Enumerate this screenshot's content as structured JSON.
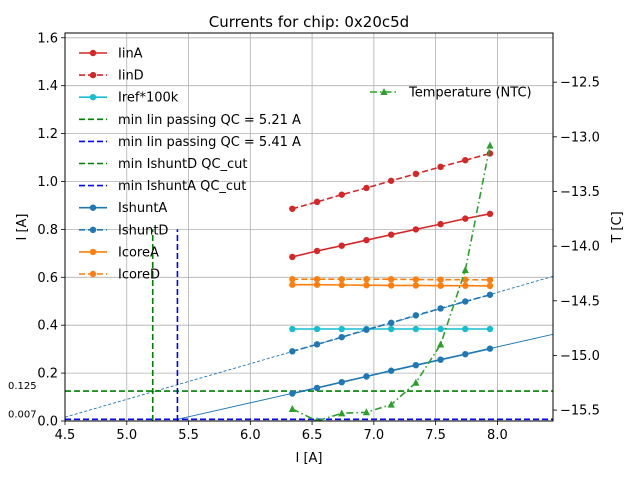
{
  "chart_data": {
    "type": "line",
    "title": "Currents for chip: 0x20c5d",
    "xlabel": "I [A]",
    "ylabel": "I [A]",
    "y2label": "T [C]",
    "xlim": [
      4.5,
      8.45
    ],
    "ylim": [
      0,
      1.62
    ],
    "y2lim": [
      -15.6,
      -12.05
    ],
    "xticks": [
      4.5,
      5.0,
      5.5,
      6.0,
      6.5,
      7.0,
      7.5,
      8.0
    ],
    "xtick_labels": [
      "4.5",
      "5.0",
      "5.5",
      "6.0",
      "6.5",
      "7.0",
      "7.5",
      "8.0"
    ],
    "yticks": [
      0.0,
      0.2,
      0.4,
      0.6,
      0.8,
      1.0,
      1.2,
      1.4,
      1.6
    ],
    "ytick_labels": [
      "0.0",
      "0.2",
      "0.4",
      "0.6",
      "0.8",
      "1.0",
      "1.2",
      "1.4",
      "1.6"
    ],
    "y2ticks": [
      -15.5,
      -15.0,
      -14.5,
      -14.0,
      -13.5,
      -13.0,
      -12.5
    ],
    "y2tick_labels": [
      "−15.5",
      "−15.0",
      "−14.5",
      "−14.0",
      "−13.5",
      "−13.0",
      "−12.5"
    ],
    "grid": true,
    "x": [
      6.34,
      6.54,
      6.74,
      6.94,
      7.14,
      7.34,
      7.54,
      7.74,
      7.94
    ],
    "series": [
      {
        "name": "IinA",
        "color": "#d62728",
        "dash": "solid",
        "values": [
          0.685,
          0.71,
          0.732,
          0.755,
          0.778,
          0.8,
          0.822,
          0.845,
          0.865
        ]
      },
      {
        "name": "IinD",
        "color": "#d62728",
        "dash": "dashed",
        "values": [
          0.886,
          0.915,
          0.945,
          0.973,
          1.003,
          1.032,
          1.061,
          1.089,
          1.117
        ]
      },
      {
        "name": "Iref*100k",
        "color": "#17becf",
        "dash": "solid",
        "values": [
          0.384,
          0.384,
          0.384,
          0.384,
          0.384,
          0.384,
          0.384,
          0.384,
          0.384
        ]
      },
      {
        "name": "IshuntA",
        "color": "#1f77b4",
        "dash": "solid",
        "values": [
          0.115,
          0.138,
          0.162,
          0.186,
          0.21,
          0.233,
          0.256,
          0.279,
          0.302
        ]
      },
      {
        "name": "IshuntD",
        "color": "#1f77b4",
        "dash": "dashed",
        "values": [
          0.291,
          0.32,
          0.35,
          0.381,
          0.41,
          0.441,
          0.47,
          0.499,
          0.527
        ]
      },
      {
        "name": "IcoreA",
        "color": "#ff7f0e",
        "dash": "solid",
        "values": [
          0.569,
          0.569,
          0.568,
          0.567,
          0.566,
          0.566,
          0.565,
          0.565,
          0.564
        ]
      },
      {
        "name": "IcoreD",
        "color": "#ff7f0e",
        "dash": "dashed",
        "values": [
          0.592,
          0.592,
          0.592,
          0.592,
          0.592,
          0.591,
          0.59,
          0.59,
          0.589
        ]
      }
    ],
    "temperature": {
      "name": "Temperature (NTC)",
      "color": "#2ca02c",
      "values": [
        -15.49,
        -15.6,
        -15.53,
        -15.52,
        -15.45,
        -15.25,
        -14.9,
        -14.22,
        -13.08
      ]
    },
    "fit_lines": [
      {
        "name": "IshuntA fit",
        "color": "#1f77b4",
        "dash": "solid",
        "x": [
          5.41,
          8.45
        ],
        "y": [
          0.007,
          0.362
        ]
      },
      {
        "name": "IshuntD fit",
        "color": "#1f77b4",
        "dash": "dashed",
        "x": [
          4.5,
          8.45
        ],
        "y": [
          0.016,
          0.604
        ]
      }
    ],
    "vlines": [
      {
        "name": "min Iin passing QC = 5.21 A",
        "color": "#008000",
        "x": 5.21,
        "ymax": 0.8
      },
      {
        "name": "min Iin passing QC = 5.41 A",
        "color": "#0000ff",
        "x": 5.41,
        "ymax": 0.8
      }
    ],
    "hlines": [
      {
        "name": "min IshuntD QC_cut",
        "color": "#008000",
        "y": 0.125,
        "label": "0.125"
      },
      {
        "name": "min IshuntA QC_cut",
        "color": "#0000ff",
        "y": 0.007,
        "label": "0.007"
      }
    ],
    "legend": [
      {
        "label": "IinA",
        "color": "#d62728",
        "style": "solid-marker"
      },
      {
        "label": "IinD",
        "color": "#d62728",
        "style": "dashed-marker"
      },
      {
        "label": "Iref*100k",
        "color": "#17becf",
        "style": "solid-marker"
      },
      {
        "label": "min Iin passing QC = 5.21 A",
        "color": "#008000",
        "style": "dashed"
      },
      {
        "label": "min Iin passing QC = 5.41 A",
        "color": "#0000ff",
        "style": "dashed"
      },
      {
        "label": "min IshuntD QC_cut",
        "color": "#008000",
        "style": "dashed"
      },
      {
        "label": "min IshuntA QC_cut",
        "color": "#0000ff",
        "style": "dashed"
      },
      {
        "label": "IshuntA",
        "color": "#1f77b4",
        "style": "solid-marker"
      },
      {
        "label": "IshuntD",
        "color": "#1f77b4",
        "style": "dashed-marker"
      },
      {
        "label": "IcoreA",
        "color": "#ff7f0e",
        "style": "solid-marker"
      },
      {
        "label": "IcoreD",
        "color": "#ff7f0e",
        "style": "dashed-marker"
      }
    ],
    "legend_position": "top-left",
    "legend2": {
      "label": "Temperature (NTC)",
      "color": "#2ca02c",
      "style": "dashdot-triangle"
    },
    "legend2_position": "top-right"
  }
}
